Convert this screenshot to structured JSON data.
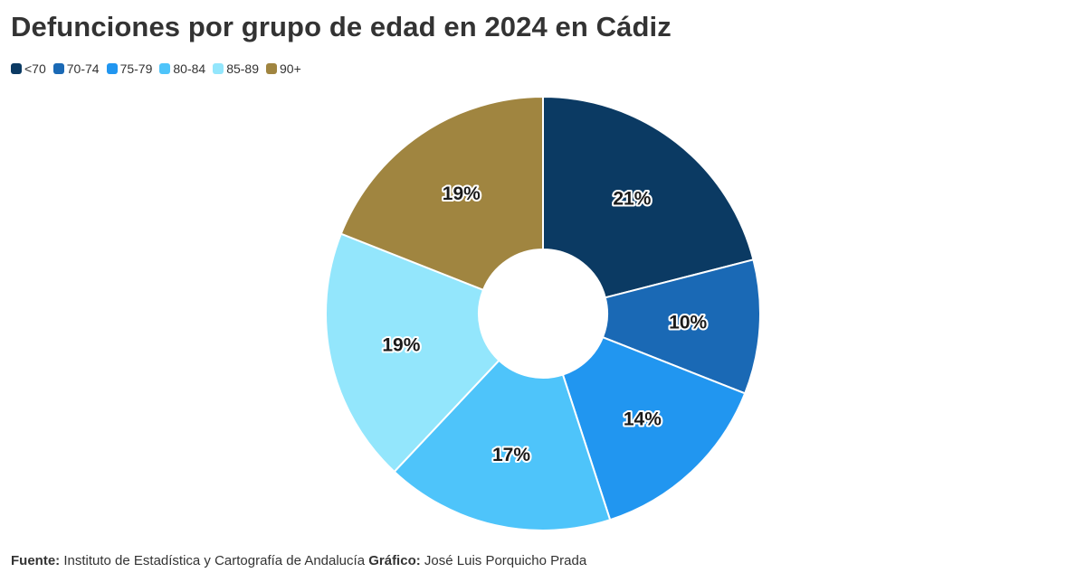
{
  "title": "Defunciones por grupo de edad en 2024 en Cádiz",
  "colors": {
    "<70": "#0b3a63",
    "70-74": "#1a69b5",
    "75-79": "#2196f0",
    "80-84": "#4ec4fa",
    "85-89": "#93e6fc",
    "90+": "#a08540"
  },
  "chart_data": {
    "type": "pie",
    "style": "donut",
    "categories": [
      "<70",
      "70-74",
      "75-79",
      "80-84",
      "85-89",
      "90+"
    ],
    "values": [
      21,
      10,
      14,
      17,
      19,
      19
    ],
    "labels": [
      "21%",
      "10%",
      "14%",
      "17%",
      "19%",
      "19%"
    ],
    "legend_position": "top-left"
  },
  "footer": {
    "source_label": "Fuente:",
    "source_text": "Instituto de Estadística y Cartografía de Andalucía",
    "graphic_label": "Gráfico:",
    "graphic_text": "José Luis Porquicho Prada"
  }
}
